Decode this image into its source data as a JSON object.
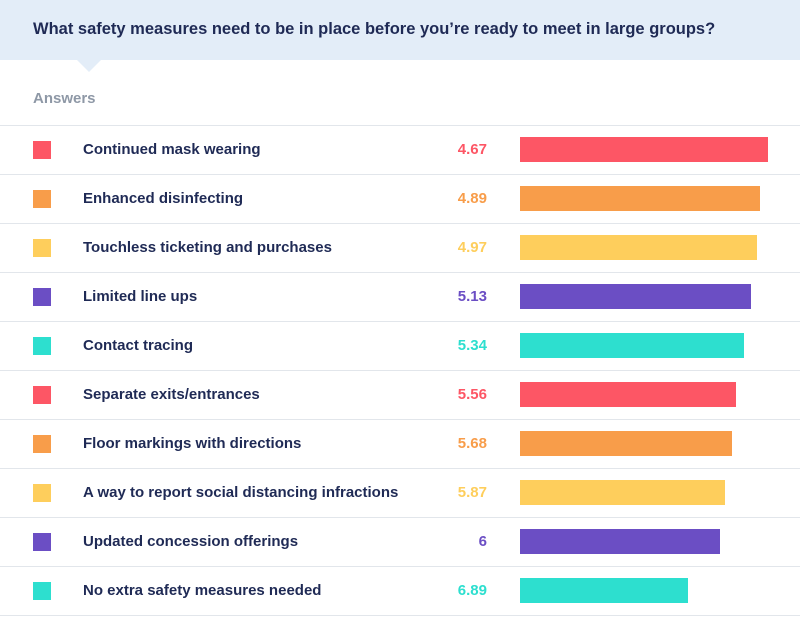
{
  "header": {
    "question": "What safety measures need to be in place before you’re ready to meet in large groups?"
  },
  "answers_label": "Answers",
  "chart_data": {
    "type": "bar",
    "orientation": "horizontal",
    "title": "What safety measures need to be in place before you’re ready to meet in large groups?",
    "note": "Bars are longest for the lowest value; bar length is inversely related to the value shown.",
    "categories": [
      "Continued mask wearing",
      "Enhanced disinfecting",
      "Touchless ticketing and purchases",
      "Limited line ups",
      "Contact tracing",
      "Separate exits/entrances",
      "Floor markings with directions",
      "A way to report social distancing infractions",
      "Updated concession offerings",
      "No extra safety measures needed"
    ],
    "value_labels": [
      "4.67",
      "4.89",
      "4.97",
      "5.13",
      "5.34",
      "5.56",
      "5.68",
      "5.87",
      "6",
      "6.89"
    ],
    "values": [
      4.67,
      4.89,
      4.97,
      5.13,
      5.34,
      5.56,
      5.68,
      5.87,
      6,
      6.89
    ],
    "colors": [
      "#fd5665",
      "#f89d4a",
      "#fece5c",
      "#6b4ec4",
      "#2ddfcf",
      "#fd5665",
      "#f89d4a",
      "#fece5c",
      "#6b4ec4",
      "#2ddfcf"
    ],
    "legend": "none",
    "grid": false
  }
}
